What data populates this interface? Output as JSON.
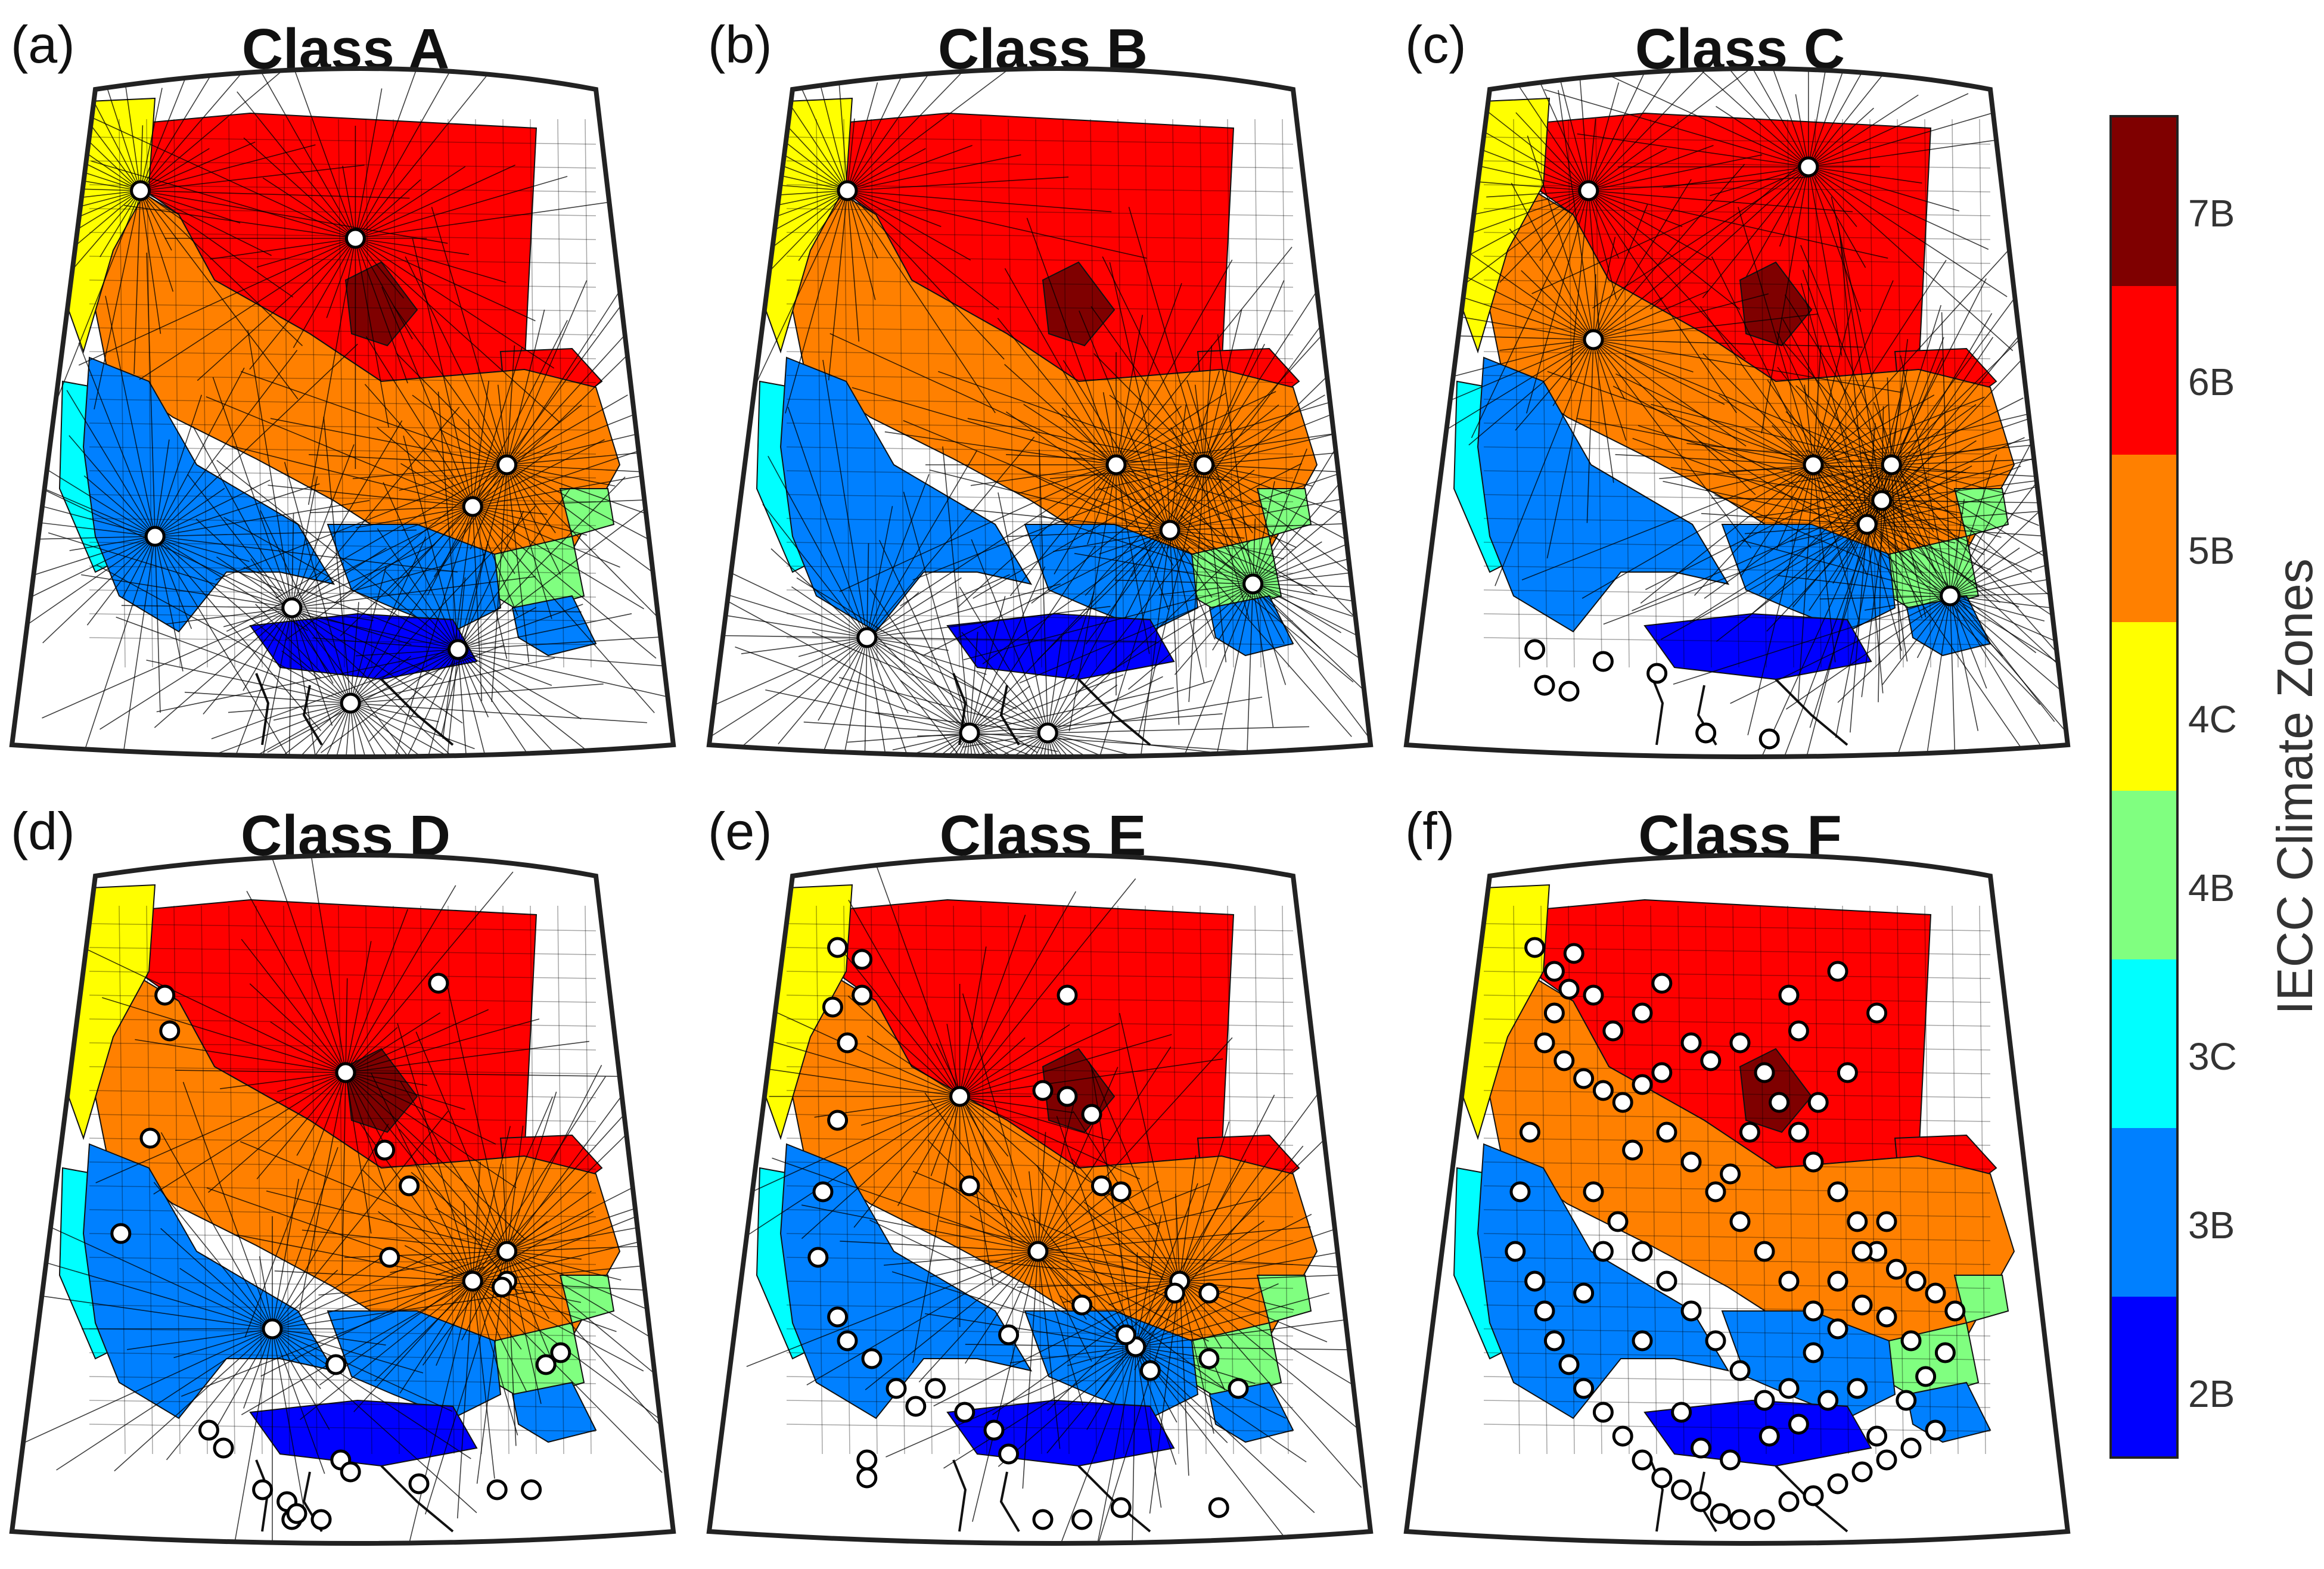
{
  "figure": {
    "panels": [
      {
        "label": "(a)",
        "title": "Class A",
        "hubs": [
          [
            0.52,
            0.17
          ],
          [
            0.83,
            0.55
          ],
          [
            0.76,
            0.62
          ],
          [
            0.39,
            0.79
          ],
          [
            0.51,
            0.95
          ],
          [
            0.11,
            0.67
          ],
          [
            0.08,
            0.09
          ],
          [
            0.73,
            0.86
          ]
        ],
        "points": []
      },
      {
        "label": "(b)",
        "title": "Class B",
        "hubs": [
          [
            0.65,
            0.55
          ],
          [
            0.83,
            0.55
          ],
          [
            0.76,
            0.66
          ],
          [
            0.14,
            0.84
          ],
          [
            0.35,
            1.0
          ],
          [
            0.51,
            1.0
          ],
          [
            0.93,
            0.75
          ],
          [
            0.1,
            0.09
          ]
        ],
        "points": []
      },
      {
        "label": "(c)",
        "title": "Class C",
        "hubs": [
          [
            0.64,
            0.05
          ],
          [
            0.65,
            0.55
          ],
          [
            0.81,
            0.55
          ],
          [
            0.79,
            0.61
          ],
          [
            0.76,
            0.65
          ],
          [
            0.93,
            0.77
          ],
          [
            0.2,
            0.34
          ],
          [
            0.19,
            0.09
          ]
        ],
        "points": [
          [
            0.08,
            0.86
          ],
          [
            0.1,
            0.92
          ],
          [
            0.15,
            0.93
          ],
          [
            0.33,
            0.9
          ],
          [
            0.43,
            1.0
          ],
          [
            0.56,
            1.02
          ],
          [
            0.22,
            0.88
          ]
        ]
      },
      {
        "label": "(d)",
        "title": "Class D",
        "hubs": [
          [
            0.35,
            0.68
          ],
          [
            0.76,
            0.6
          ],
          [
            0.83,
            0.55
          ],
          [
            0.5,
            0.25
          ]
        ],
        "points": [
          [
            0.69,
            0.1
          ],
          [
            0.5,
            0.25
          ],
          [
            0.58,
            0.38
          ],
          [
            0.63,
            0.44
          ],
          [
            0.59,
            0.56
          ],
          [
            0.13,
            0.12
          ],
          [
            0.14,
            0.18
          ],
          [
            0.1,
            0.36
          ],
          [
            0.04,
            0.52
          ],
          [
            0.48,
            0.74
          ],
          [
            0.49,
            0.9
          ],
          [
            0.51,
            0.92
          ],
          [
            0.65,
            0.94
          ],
          [
            0.81,
            0.95
          ],
          [
            0.88,
            0.95
          ],
          [
            0.22,
            0.85
          ],
          [
            0.25,
            0.88
          ],
          [
            0.33,
            0.95
          ],
          [
            0.38,
            0.97
          ],
          [
            0.39,
            1.0
          ],
          [
            0.4,
            0.99
          ],
          [
            0.45,
            1.0
          ],
          [
            0.91,
            0.74
          ],
          [
            0.94,
            0.72
          ],
          [
            0.83,
            0.6
          ],
          [
            0.82,
            0.61
          ]
        ]
      },
      {
        "label": "(e)",
        "title": "Class E",
        "hubs": [
          [
            0.33,
            0.29
          ],
          [
            0.49,
            0.55
          ],
          [
            0.78,
            0.6
          ],
          [
            0.69,
            0.71
          ]
        ],
        "points": [
          [
            0.08,
            0.04
          ],
          [
            0.13,
            0.06
          ],
          [
            0.13,
            0.12
          ],
          [
            0.1,
            0.2
          ],
          [
            0.07,
            0.14
          ],
          [
            0.08,
            0.33
          ],
          [
            0.05,
            0.45
          ],
          [
            0.55,
            0.12
          ],
          [
            0.5,
            0.28
          ],
          [
            0.55,
            0.29
          ],
          [
            0.6,
            0.32
          ],
          [
            0.62,
            0.44
          ],
          [
            0.66,
            0.45
          ],
          [
            0.35,
            0.44
          ],
          [
            0.43,
            0.69
          ],
          [
            0.58,
            0.64
          ],
          [
            0.67,
            0.69
          ],
          [
            0.72,
            0.75
          ],
          [
            0.84,
            0.73
          ],
          [
            0.9,
            0.78
          ],
          [
            0.08,
            0.66
          ],
          [
            0.1,
            0.7
          ],
          [
            0.15,
            0.73
          ],
          [
            0.2,
            0.78
          ],
          [
            0.24,
            0.81
          ],
          [
            0.28,
            0.78
          ],
          [
            0.34,
            0.82
          ],
          [
            0.4,
            0.85
          ],
          [
            0.43,
            0.89
          ],
          [
            0.5,
            1.0
          ],
          [
            0.58,
            1.0
          ],
          [
            0.66,
            0.98
          ],
          [
            0.86,
            0.98
          ],
          [
            0.77,
            0.62
          ],
          [
            0.84,
            0.62
          ],
          [
            0.14,
            0.9
          ],
          [
            0.14,
            0.93
          ],
          [
            0.04,
            0.56
          ]
        ]
      },
      {
        "label": "(f)",
        "title": "Class F",
        "hubs": [],
        "points": [
          [
            0.08,
            0.04
          ],
          [
            0.12,
            0.08
          ],
          [
            0.15,
            0.11
          ],
          [
            0.12,
            0.15
          ],
          [
            0.1,
            0.2
          ],
          [
            0.14,
            0.23
          ],
          [
            0.18,
            0.26
          ],
          [
            0.22,
            0.28
          ],
          [
            0.26,
            0.3
          ],
          [
            0.3,
            0.27
          ],
          [
            0.34,
            0.25
          ],
          [
            0.4,
            0.2
          ],
          [
            0.44,
            0.23
          ],
          [
            0.5,
            0.2
          ],
          [
            0.55,
            0.25
          ],
          [
            0.58,
            0.3
          ],
          [
            0.62,
            0.35
          ],
          [
            0.65,
            0.4
          ],
          [
            0.7,
            0.45
          ],
          [
            0.74,
            0.5
          ],
          [
            0.78,
            0.55
          ],
          [
            0.82,
            0.58
          ],
          [
            0.86,
            0.6
          ],
          [
            0.9,
            0.62
          ],
          [
            0.94,
            0.65
          ],
          [
            0.07,
            0.35
          ],
          [
            0.05,
            0.45
          ],
          [
            0.04,
            0.55
          ],
          [
            0.08,
            0.6
          ],
          [
            0.1,
            0.65
          ],
          [
            0.12,
            0.7
          ],
          [
            0.15,
            0.74
          ],
          [
            0.18,
            0.78
          ],
          [
            0.22,
            0.82
          ],
          [
            0.26,
            0.86
          ],
          [
            0.3,
            0.9
          ],
          [
            0.34,
            0.93
          ],
          [
            0.38,
            0.95
          ],
          [
            0.42,
            0.97
          ],
          [
            0.46,
            0.99
          ],
          [
            0.5,
            1.0
          ],
          [
            0.55,
            1.0
          ],
          [
            0.6,
            0.97
          ],
          [
            0.65,
            0.96
          ],
          [
            0.7,
            0.94
          ],
          [
            0.75,
            0.92
          ],
          [
            0.8,
            0.9
          ],
          [
            0.85,
            0.88
          ],
          [
            0.9,
            0.85
          ],
          [
            0.2,
            0.45
          ],
          [
            0.25,
            0.5
          ],
          [
            0.3,
            0.55
          ],
          [
            0.35,
            0.6
          ],
          [
            0.4,
            0.65
          ],
          [
            0.45,
            0.7
          ],
          [
            0.5,
            0.75
          ],
          [
            0.55,
            0.8
          ],
          [
            0.6,
            0.78
          ],
          [
            0.65,
            0.72
          ],
          [
            0.7,
            0.68
          ],
          [
            0.75,
            0.64
          ],
          [
            0.8,
            0.66
          ],
          [
            0.85,
            0.7
          ],
          [
            0.35,
            0.35
          ],
          [
            0.4,
            0.4
          ],
          [
            0.45,
            0.45
          ],
          [
            0.5,
            0.5
          ],
          [
            0.55,
            0.55
          ],
          [
            0.6,
            0.6
          ],
          [
            0.65,
            0.65
          ],
          [
            0.7,
            0.6
          ],
          [
            0.75,
            0.55
          ],
          [
            0.8,
            0.5
          ],
          [
            0.6,
            0.12
          ],
          [
            0.7,
            0.08
          ],
          [
            0.78,
            0.15
          ],
          [
            0.72,
            0.25
          ],
          [
            0.66,
            0.3
          ],
          [
            0.62,
            0.18
          ],
          [
            0.52,
            0.35
          ],
          [
            0.48,
            0.42
          ],
          [
            0.28,
            0.38
          ],
          [
            0.22,
            0.55
          ],
          [
            0.18,
            0.62
          ],
          [
            0.3,
            0.7
          ],
          [
            0.38,
            0.82
          ],
          [
            0.42,
            0.88
          ],
          [
            0.48,
            0.9
          ],
          [
            0.56,
            0.86
          ],
          [
            0.62,
            0.84
          ],
          [
            0.68,
            0.8
          ],
          [
            0.74,
            0.78
          ],
          [
            0.78,
            0.86
          ],
          [
            0.84,
            0.8
          ],
          [
            0.88,
            0.76
          ],
          [
            0.92,
            0.72
          ],
          [
            0.16,
            0.05
          ],
          [
            0.2,
            0.12
          ],
          [
            0.24,
            0.18
          ],
          [
            0.3,
            0.15
          ],
          [
            0.34,
            0.1
          ]
        ]
      }
    ],
    "colorbar": {
      "title": "IECC Climate Zones",
      "zones": [
        {
          "label": "7B",
          "color": "#7f0000"
        },
        {
          "label": "6B",
          "color": "#ff0000"
        },
        {
          "label": "5B",
          "color": "#ff8000"
        },
        {
          "label": "4C",
          "color": "#ffff00"
        },
        {
          "label": "4B",
          "color": "#80ff80"
        },
        {
          "label": "3C",
          "color": "#00ffff"
        },
        {
          "label": "3B",
          "color": "#0080ff"
        },
        {
          "label": "2B",
          "color": "#0000ff"
        }
      ]
    }
  }
}
